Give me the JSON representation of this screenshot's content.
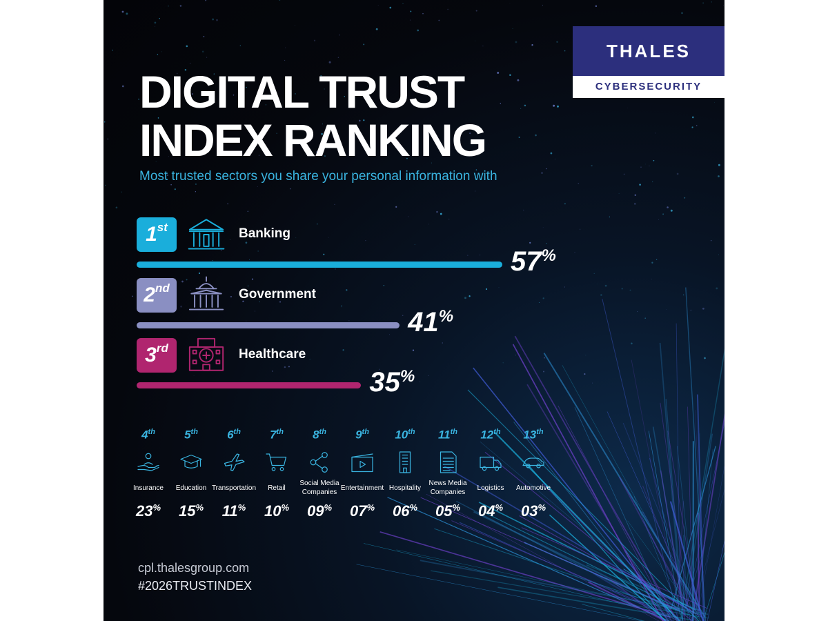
{
  "brand": {
    "name": "THALES",
    "division": "CYBERSECURITY"
  },
  "title_line1": "DIGITAL TRUST",
  "title_line2": "INDEX RANKING",
  "subtitle": "Most trusted sectors you share your personal information with",
  "colors": {
    "first": "#1aaedb",
    "second": "#8a8fc2",
    "third": "#b0256f",
    "accent": "#3ab4e0",
    "brand": "#2c2f7d"
  },
  "chart_data": {
    "type": "bar",
    "title": "DIGITAL TRUST INDEX RANKING",
    "unit": "%",
    "top": [
      {
        "rank": "1",
        "suffix": "st",
        "name": "Banking",
        "value": 57,
        "display": "57",
        "icon": "bank-icon"
      },
      {
        "rank": "2",
        "suffix": "nd",
        "name": "Government",
        "value": 41,
        "display": "41",
        "icon": "capitol-icon"
      },
      {
        "rank": "3",
        "suffix": "rd",
        "name": "Healthcare",
        "value": 35,
        "display": "35",
        "icon": "hospital-icon"
      }
    ],
    "others": [
      {
        "rank": "4",
        "suffix": "th",
        "name": "Insurance",
        "value": 23,
        "display": "23",
        "icon": "insurance-hand-icon"
      },
      {
        "rank": "5",
        "suffix": "th",
        "name": "Education",
        "value": 15,
        "display": "15",
        "icon": "graduation-cap-icon"
      },
      {
        "rank": "6",
        "suffix": "th",
        "name": "Transportation",
        "value": 11,
        "display": "11",
        "icon": "airplane-icon"
      },
      {
        "rank": "7",
        "suffix": "th",
        "name": "Retail",
        "value": 10,
        "display": "10",
        "icon": "shopping-cart-icon"
      },
      {
        "rank": "8",
        "suffix": "th",
        "name": "Social Media Companies",
        "value": 9,
        "display": "09",
        "icon": "share-icon"
      },
      {
        "rank": "9",
        "suffix": "th",
        "name": "Entertainment",
        "value": 7,
        "display": "07",
        "icon": "video-icon"
      },
      {
        "rank": "10",
        "suffix": "th",
        "name": "Hospitality",
        "value": 6,
        "display": "06",
        "icon": "building-icon"
      },
      {
        "rank": "11",
        "suffix": "th",
        "name": "News Media Companies",
        "value": 5,
        "display": "05",
        "icon": "newspaper-icon"
      },
      {
        "rank": "12",
        "suffix": "th",
        "name": "Logistics",
        "value": 4,
        "display": "04",
        "icon": "truck-icon"
      },
      {
        "rank": "13",
        "suffix": "th",
        "name": "Automotive",
        "value": 3,
        "display": "03",
        "icon": "car-icon"
      }
    ]
  },
  "footer": {
    "url": "cpl.thalesgroup.com",
    "hashtag": "#2026TRUSTINDEX"
  }
}
